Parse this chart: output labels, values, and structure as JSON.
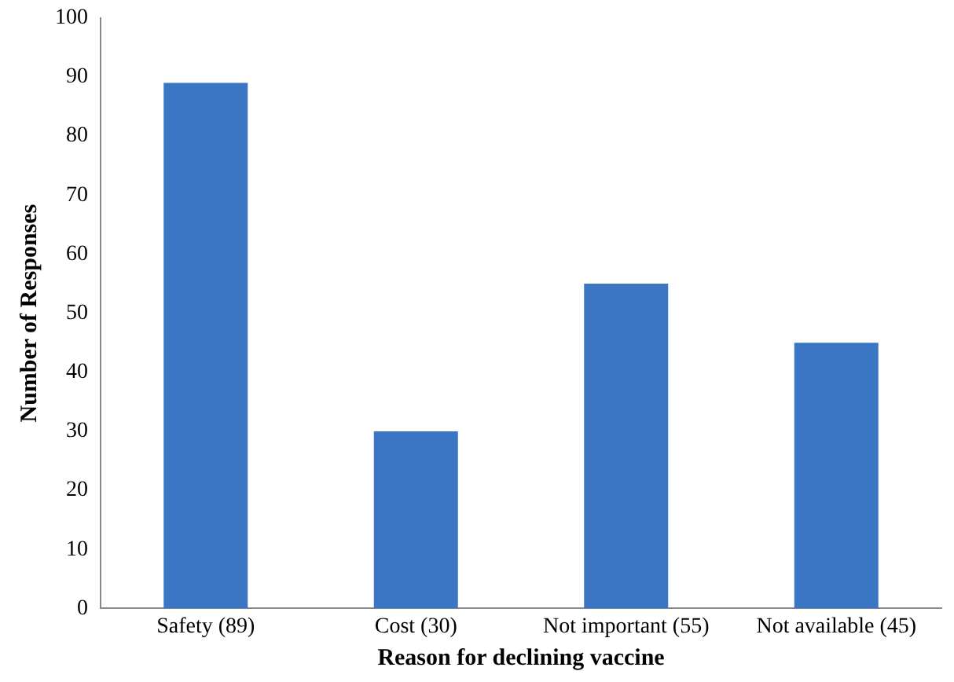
{
  "chart_data": {
    "type": "bar",
    "xlabel": "Reason for declining vaccine",
    "ylabel": "Number of Responses",
    "categories": [
      "Safety (89)",
      "Cost (30)",
      "Not important (55)",
      "Not available (45)"
    ],
    "values": [
      89,
      30,
      55,
      45
    ],
    "color": "#3a76c4",
    "ylim": [
      0,
      100
    ],
    "yticks": [
      0,
      10,
      20,
      30,
      40,
      50,
      60,
      70,
      80,
      90,
      100
    ],
    "grid": false,
    "legend": false
  }
}
